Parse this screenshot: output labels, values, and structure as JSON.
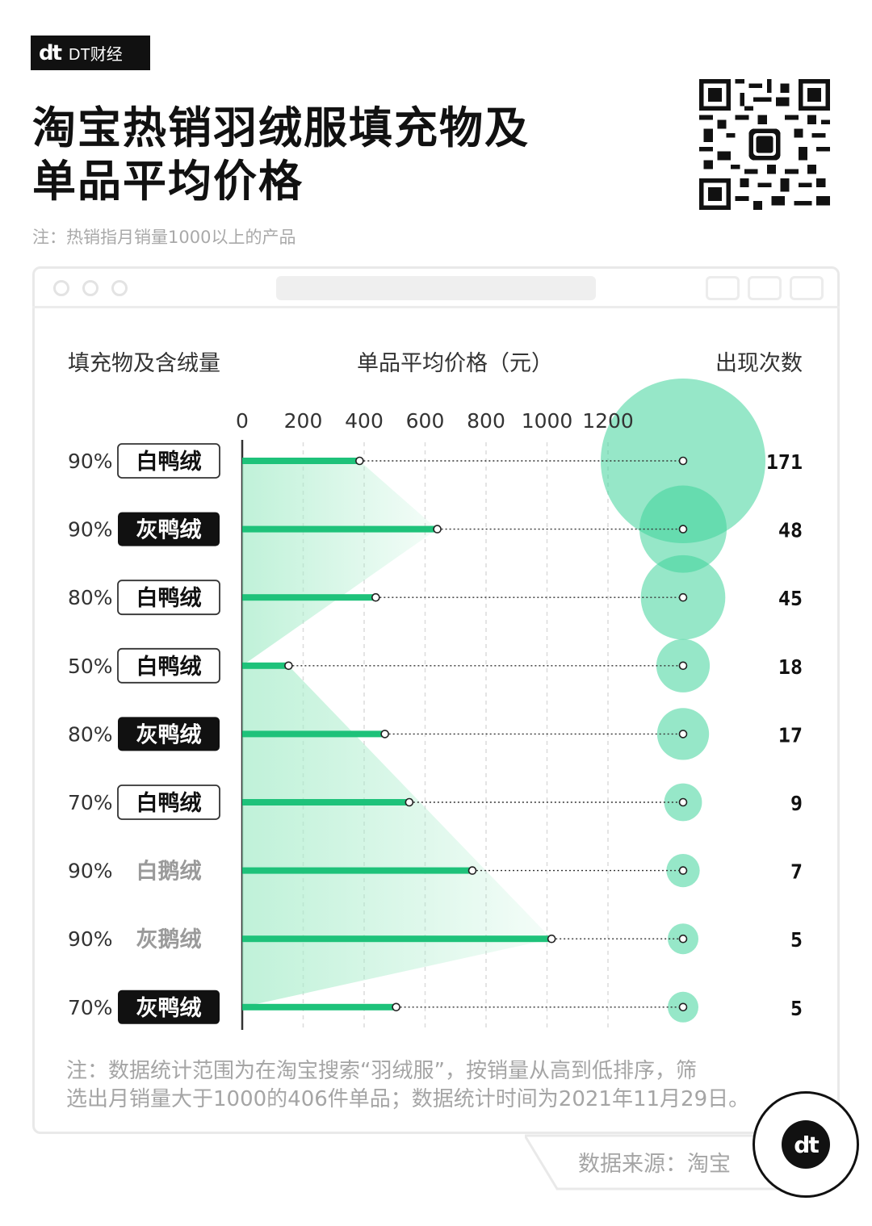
{
  "brand": {
    "mark": "dt",
    "name": "DT财经"
  },
  "title_line1": "淘宝热销羽绒服填充物及",
  "title_line2": "单品平均价格",
  "subtitle": "注：热销指月销量1000以上的产品",
  "column_headers": {
    "filling": "填充物及含绒量",
    "price": "单品平均价格（元）",
    "count": "出现次数"
  },
  "footnote_line1": "注：数据统计范围为在淘宝搜索“羽绒服”，按销量从高到低排序，筛",
  "footnote_line2": "选出月销量大于1000的406件单品；数据统计时间为2021年11月29日。",
  "source": "数据来源：淘宝",
  "colors": {
    "bar": "#1ec27a",
    "bubble": "#3fd49a",
    "area": "#a6ecc9",
    "gray_label": "#9a9a9a"
  },
  "chart_data": {
    "type": "bar",
    "title": "淘宝热销羽绒服填充物及单品平均价格",
    "xlabel": "单品平均价格（元）",
    "xlim": [
      0,
      1200
    ],
    "x_ticks": [
      "0",
      "200",
      "400",
      "600",
      "800",
      "1000",
      "1200"
    ],
    "grid": true,
    "categories": [
      {
        "pct": "90%",
        "label": "白鸭绒",
        "style": "outline"
      },
      {
        "pct": "90%",
        "label": "灰鸭绒",
        "style": "filled"
      },
      {
        "pct": "80%",
        "label": "白鸭绒",
        "style": "outline"
      },
      {
        "pct": "50%",
        "label": "白鸭绒",
        "style": "outline"
      },
      {
        "pct": "80%",
        "label": "灰鸭绒",
        "style": "filled"
      },
      {
        "pct": "70%",
        "label": "白鸭绒",
        "style": "outline"
      },
      {
        "pct": "90%",
        "label": "白鹅绒",
        "style": "plain"
      },
      {
        "pct": "90%",
        "label": "灰鹅绒",
        "style": "plain"
      },
      {
        "pct": "70%",
        "label": "灰鸭绒",
        "style": "filled"
      }
    ],
    "series": [
      {
        "values": [
          385,
          640,
          438,
          152,
          468,
          548,
          755,
          1015,
          505
        ]
      },
      {
        "values": [
          171,
          48,
          45,
          18,
          17,
          9,
          7,
          5,
          5
        ]
      }
    ],
    "count_labels": [
      "171",
      "48",
      "45",
      "18",
      "17",
      "9",
      "7",
      "5",
      "5"
    ]
  }
}
